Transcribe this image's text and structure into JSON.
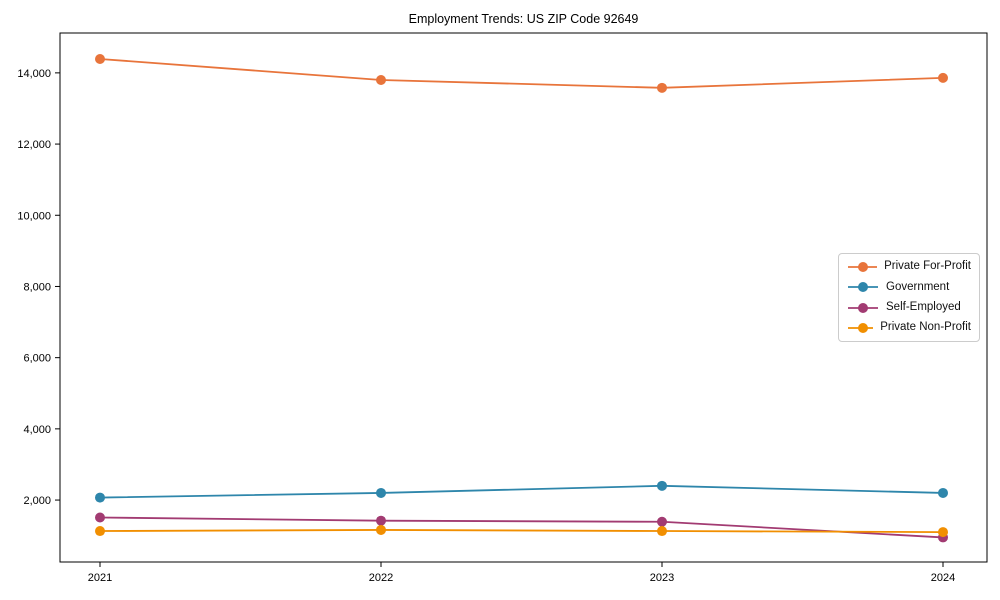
{
  "chart_data": {
    "type": "line",
    "title": "Employment Trends: US ZIP Code 92649",
    "xlabel": "",
    "ylabel": "",
    "categories": [
      "2021",
      "2022",
      "2023",
      "2024"
    ],
    "series": [
      {
        "name": "Private For-Profit",
        "color": "#E8743B",
        "values": [
          14390,
          13800,
          13580,
          13860
        ]
      },
      {
        "name": "Government",
        "color": "#2E86AB",
        "values": [
          2070,
          2200,
          2400,
          2200
        ]
      },
      {
        "name": "Self-Employed",
        "color": "#A23B72",
        "values": [
          1510,
          1420,
          1390,
          950
        ]
      },
      {
        "name": "Private Non-Profit",
        "color": "#F18F01",
        "values": [
          1130,
          1160,
          1130,
          1100
        ]
      }
    ],
    "yticks": {
      "values": [
        2000,
        4000,
        6000,
        8000,
        10000,
        12000,
        14000
      ],
      "labels": [
        "2,000",
        "4,000",
        "6,000",
        "8,000",
        "10,000",
        "12,000",
        "14,000"
      ]
    },
    "ylim": [
      260,
      15120
    ],
    "grid": false,
    "legend_position": "center-right",
    "axis_color": "#000000",
    "text_color": "#000000",
    "background": "#ffffff"
  }
}
